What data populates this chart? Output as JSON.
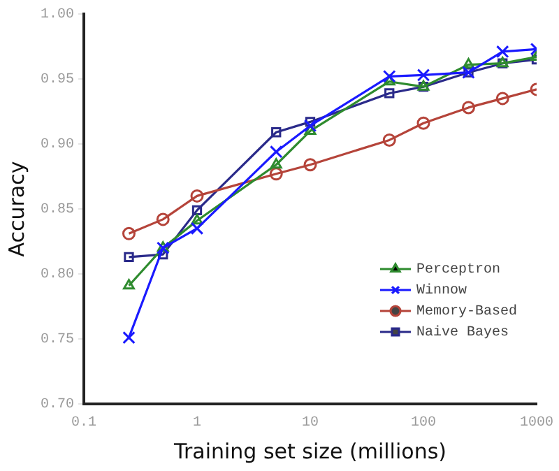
{
  "chart_data": {
    "type": "line",
    "xlabel": "Training set size (millions)",
    "ylabel": "Accuracy",
    "log": "x",
    "x": [
      0.25,
      0.5,
      1,
      5,
      10,
      50,
      100,
      250,
      500,
      1000
    ],
    "xlim": [
      0.1,
      1000
    ],
    "xticks": [
      0.1,
      1,
      10,
      100,
      1000
    ],
    "ylim": [
      0.7,
      1.0
    ],
    "yticks": [
      {
        "value": 0.7,
        "label": "0.70"
      },
      {
        "value": 0.75,
        "label": "0.75"
      },
      {
        "value": 0.8,
        "label": "0.80"
      },
      {
        "value": 0.85,
        "label": "0.85"
      },
      {
        "value": 0.9,
        "label": "0.90"
      },
      {
        "value": 0.95,
        "label": "0.95"
      },
      {
        "value": 1.0,
        "label": "1.00"
      }
    ],
    "grid": false,
    "legend": "bottom right",
    "series": [
      {
        "name": "Perceptron",
        "color": "#2e8b2e",
        "marker": "triangle",
        "values": [
          0.791,
          0.82,
          0.841,
          0.884,
          0.91,
          0.948,
          0.944,
          0.961,
          0.962,
          0.967
        ]
      },
      {
        "name": "Winnow",
        "color": "#1a1aff",
        "marker": "cross",
        "values": [
          0.751,
          0.82,
          0.835,
          0.894,
          0.914,
          0.952,
          0.953,
          0.955,
          0.971,
          0.973
        ]
      },
      {
        "name": "Memory-Based",
        "color": "#b5443a",
        "marker": "circle",
        "values": [
          0.831,
          0.842,
          0.86,
          0.877,
          0.884,
          0.903,
          0.916,
          0.928,
          0.935,
          0.942
        ]
      },
      {
        "name": "Naive Bayes",
        "color": "#2a2a8a",
        "marker": "square",
        "values": [
          0.813,
          0.815,
          0.849,
          0.909,
          0.917,
          0.939,
          0.944,
          0.955,
          0.962,
          0.965
        ]
      }
    ]
  }
}
